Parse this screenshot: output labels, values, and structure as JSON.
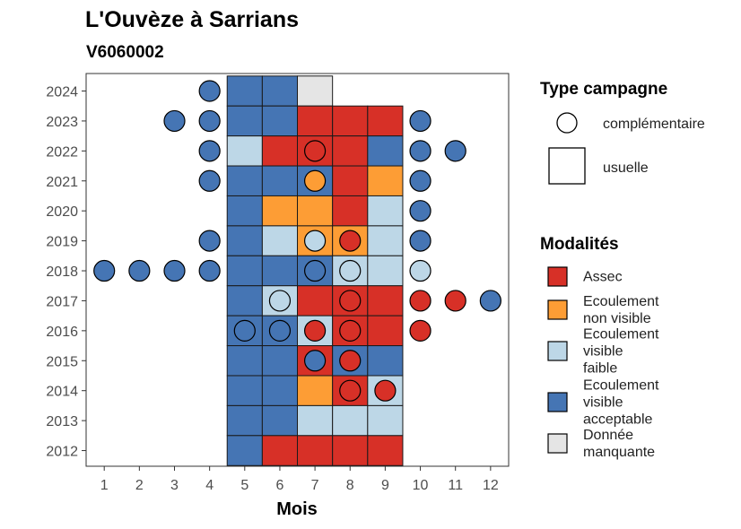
{
  "title": "L'Ouvèze à Sarrians",
  "subtitle": "V6060002",
  "chart_data": {
    "type": "heatmap",
    "xlabel": "Mois",
    "ylabel": "",
    "x_ticks": [
      "1",
      "2",
      "3",
      "4",
      "5",
      "6",
      "7",
      "8",
      "9",
      "10",
      "11",
      "12"
    ],
    "y_ticks": [
      "2024",
      "2023",
      "2022",
      "2021",
      "2020",
      "2019",
      "2018",
      "2017",
      "2016",
      "2015",
      "2014",
      "2013",
      "2012"
    ],
    "xlim": [
      1,
      12
    ],
    "ylim": [
      2012,
      2024
    ],
    "grid": false,
    "colors": {
      "Assec": "#d73027",
      "Ecoulement non visible": "#fd9d35",
      "Ecoulement visible faible": "#bdd7e7",
      "Ecoulement visible acceptable": "#4575b4",
      "Donnée manquante": "#e5e5e5"
    },
    "usuelle": [
      {
        "year": 2024,
        "month": 5,
        "mod": "Ecoulement visible acceptable"
      },
      {
        "year": 2024,
        "month": 6,
        "mod": "Ecoulement visible acceptable"
      },
      {
        "year": 2024,
        "month": 7,
        "mod": "Donnée manquante"
      },
      {
        "year": 2023,
        "month": 5,
        "mod": "Ecoulement visible acceptable"
      },
      {
        "year": 2023,
        "month": 6,
        "mod": "Ecoulement visible acceptable"
      },
      {
        "year": 2023,
        "month": 7,
        "mod": "Assec"
      },
      {
        "year": 2023,
        "month": 8,
        "mod": "Assec"
      },
      {
        "year": 2023,
        "month": 9,
        "mod": "Assec"
      },
      {
        "year": 2022,
        "month": 5,
        "mod": "Ecoulement visible faible"
      },
      {
        "year": 2022,
        "month": 6,
        "mod": "Assec"
      },
      {
        "year": 2022,
        "month": 7,
        "mod": "Assec"
      },
      {
        "year": 2022,
        "month": 8,
        "mod": "Assec"
      },
      {
        "year": 2022,
        "month": 9,
        "mod": "Ecoulement visible acceptable"
      },
      {
        "year": 2021,
        "month": 5,
        "mod": "Ecoulement visible acceptable"
      },
      {
        "year": 2021,
        "month": 6,
        "mod": "Ecoulement visible acceptable"
      },
      {
        "year": 2021,
        "month": 7,
        "mod": "Ecoulement visible acceptable"
      },
      {
        "year": 2021,
        "month": 8,
        "mod": "Assec"
      },
      {
        "year": 2021,
        "month": 9,
        "mod": "Ecoulement non visible"
      },
      {
        "year": 2020,
        "month": 5,
        "mod": "Ecoulement visible acceptable"
      },
      {
        "year": 2020,
        "month": 6,
        "mod": "Ecoulement non visible"
      },
      {
        "year": 2020,
        "month": 7,
        "mod": "Ecoulement non visible"
      },
      {
        "year": 2020,
        "month": 8,
        "mod": "Assec"
      },
      {
        "year": 2020,
        "month": 9,
        "mod": "Ecoulement visible faible"
      },
      {
        "year": 2019,
        "month": 5,
        "mod": "Ecoulement visible acceptable"
      },
      {
        "year": 2019,
        "month": 6,
        "mod": "Ecoulement visible faible"
      },
      {
        "year": 2019,
        "month": 7,
        "mod": "Ecoulement non visible"
      },
      {
        "year": 2019,
        "month": 8,
        "mod": "Ecoulement non visible"
      },
      {
        "year": 2019,
        "month": 9,
        "mod": "Ecoulement visible faible"
      },
      {
        "year": 2018,
        "month": 5,
        "mod": "Ecoulement visible acceptable"
      },
      {
        "year": 2018,
        "month": 6,
        "mod": "Ecoulement visible acceptable"
      },
      {
        "year": 2018,
        "month": 7,
        "mod": "Ecoulement visible acceptable"
      },
      {
        "year": 2018,
        "month": 8,
        "mod": "Ecoulement visible faible"
      },
      {
        "year": 2018,
        "month": 9,
        "mod": "Ecoulement visible faible"
      },
      {
        "year": 2017,
        "month": 5,
        "mod": "Ecoulement visible acceptable"
      },
      {
        "year": 2017,
        "month": 6,
        "mod": "Ecoulement visible faible"
      },
      {
        "year": 2017,
        "month": 7,
        "mod": "Assec"
      },
      {
        "year": 2017,
        "month": 8,
        "mod": "Assec"
      },
      {
        "year": 2017,
        "month": 9,
        "mod": "Assec"
      },
      {
        "year": 2016,
        "month": 5,
        "mod": "Ecoulement visible acceptable"
      },
      {
        "year": 2016,
        "month": 6,
        "mod": "Ecoulement visible acceptable"
      },
      {
        "year": 2016,
        "month": 7,
        "mod": "Ecoulement visible faible"
      },
      {
        "year": 2016,
        "month": 8,
        "mod": "Assec"
      },
      {
        "year": 2016,
        "month": 9,
        "mod": "Assec"
      },
      {
        "year": 2015,
        "month": 5,
        "mod": "Ecoulement visible acceptable"
      },
      {
        "year": 2015,
        "month": 6,
        "mod": "Ecoulement visible acceptable"
      },
      {
        "year": 2015,
        "month": 7,
        "mod": "Assec"
      },
      {
        "year": 2015,
        "month": 8,
        "mod": "Ecoulement visible acceptable"
      },
      {
        "year": 2015,
        "month": 9,
        "mod": "Ecoulement visible acceptable"
      },
      {
        "year": 2014,
        "month": 5,
        "mod": "Ecoulement visible acceptable"
      },
      {
        "year": 2014,
        "month": 6,
        "mod": "Ecoulement visible acceptable"
      },
      {
        "year": 2014,
        "month": 7,
        "mod": "Ecoulement non visible"
      },
      {
        "year": 2014,
        "month": 8,
        "mod": "Assec"
      },
      {
        "year": 2014,
        "month": 9,
        "mod": "Ecoulement visible faible"
      },
      {
        "year": 2013,
        "month": 5,
        "mod": "Ecoulement visible acceptable"
      },
      {
        "year": 2013,
        "month": 6,
        "mod": "Ecoulement visible acceptable"
      },
      {
        "year": 2013,
        "month": 7,
        "mod": "Ecoulement visible faible"
      },
      {
        "year": 2013,
        "month": 8,
        "mod": "Ecoulement visible faible"
      },
      {
        "year": 2013,
        "month": 9,
        "mod": "Ecoulement visible faible"
      },
      {
        "year": 2012,
        "month": 5,
        "mod": "Ecoulement visible acceptable"
      },
      {
        "year": 2012,
        "month": 6,
        "mod": "Assec"
      },
      {
        "year": 2012,
        "month": 7,
        "mod": "Assec"
      },
      {
        "year": 2012,
        "month": 8,
        "mod": "Assec"
      },
      {
        "year": 2012,
        "month": 9,
        "mod": "Assec"
      }
    ],
    "complementaire": [
      {
        "year": 2024,
        "month": 4,
        "mod": "Ecoulement visible acceptable"
      },
      {
        "year": 2023,
        "month": 3,
        "mod": "Ecoulement visible acceptable"
      },
      {
        "year": 2023,
        "month": 4,
        "mod": "Ecoulement visible acceptable"
      },
      {
        "year": 2023,
        "month": 10,
        "mod": "Ecoulement visible acceptable"
      },
      {
        "year": 2022,
        "month": 4,
        "mod": "Ecoulement visible acceptable"
      },
      {
        "year": 2022,
        "month": 7,
        "mod": "Assec"
      },
      {
        "year": 2022,
        "month": 10,
        "mod": "Ecoulement visible acceptable"
      },
      {
        "year": 2022,
        "month": 11,
        "mod": "Ecoulement visible acceptable"
      },
      {
        "year": 2021,
        "month": 4,
        "mod": "Ecoulement visible acceptable"
      },
      {
        "year": 2021,
        "month": 7,
        "mod": "Ecoulement non visible"
      },
      {
        "year": 2021,
        "month": 10,
        "mod": "Ecoulement visible acceptable"
      },
      {
        "year": 2020,
        "month": 10,
        "mod": "Ecoulement visible acceptable"
      },
      {
        "year": 2019,
        "month": 4,
        "mod": "Ecoulement visible acceptable"
      },
      {
        "year": 2019,
        "month": 7,
        "mod": "Ecoulement visible faible"
      },
      {
        "year": 2019,
        "month": 8,
        "mod": "Assec"
      },
      {
        "year": 2019,
        "month": 10,
        "mod": "Ecoulement visible acceptable"
      },
      {
        "year": 2018,
        "month": 1,
        "mod": "Ecoulement visible acceptable"
      },
      {
        "year": 2018,
        "month": 2,
        "mod": "Ecoulement visible acceptable"
      },
      {
        "year": 2018,
        "month": 3,
        "mod": "Ecoulement visible acceptable"
      },
      {
        "year": 2018,
        "month": 4,
        "mod": "Ecoulement visible acceptable"
      },
      {
        "year": 2018,
        "month": 7,
        "mod": "Ecoulement visible acceptable"
      },
      {
        "year": 2018,
        "month": 8,
        "mod": "Ecoulement visible faible"
      },
      {
        "year": 2018,
        "month": 10,
        "mod": "Ecoulement visible faible"
      },
      {
        "year": 2017,
        "month": 6,
        "mod": "Ecoulement visible faible"
      },
      {
        "year": 2017,
        "month": 8,
        "mod": "Assec"
      },
      {
        "year": 2017,
        "month": 10,
        "mod": "Assec"
      },
      {
        "year": 2017,
        "month": 11,
        "mod": "Assec"
      },
      {
        "year": 2017,
        "month": 12,
        "mod": "Ecoulement visible acceptable"
      },
      {
        "year": 2016,
        "month": 5,
        "mod": "Ecoulement visible acceptable"
      },
      {
        "year": 2016,
        "month": 6,
        "mod": "Ecoulement visible acceptable"
      },
      {
        "year": 2016,
        "month": 7,
        "mod": "Assec"
      },
      {
        "year": 2016,
        "month": 8,
        "mod": "Assec"
      },
      {
        "year": 2016,
        "month": 10,
        "mod": "Assec"
      },
      {
        "year": 2015,
        "month": 7,
        "mod": "Ecoulement visible acceptable"
      },
      {
        "year": 2015,
        "month": 8,
        "mod": "Assec"
      },
      {
        "year": 2014,
        "month": 8,
        "mod": "Assec"
      },
      {
        "year": 2014,
        "month": 9,
        "mod": "Assec"
      }
    ]
  },
  "legend_type": {
    "title": "Type campagne",
    "items": [
      "complémentaire",
      "usuelle"
    ]
  },
  "legend_mod": {
    "title": "Modalités",
    "items": [
      {
        "lines": [
          "Assec"
        ],
        "color": "#d73027"
      },
      {
        "lines": [
          "Ecoulement",
          "non visible"
        ],
        "color": "#fd9d35"
      },
      {
        "lines": [
          "Ecoulement",
          "visible",
          "faible"
        ],
        "color": "#bdd7e7"
      },
      {
        "lines": [
          "Ecoulement",
          "visible",
          "acceptable"
        ],
        "color": "#4575b4"
      },
      {
        "lines": [
          "Donnée",
          "manquante"
        ],
        "color": "#e5e5e5"
      }
    ]
  }
}
